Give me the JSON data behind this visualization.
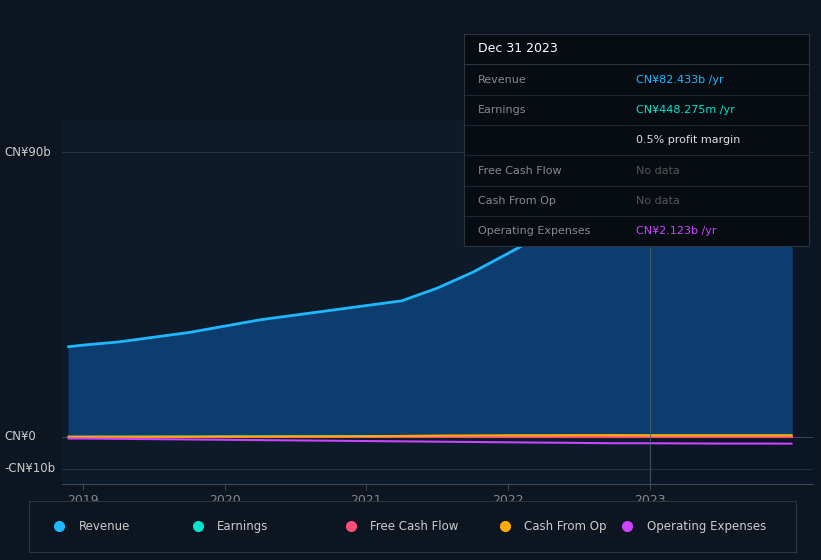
{
  "background_color": "#0d1520",
  "plot_bg_color": "#0d1a2a",
  "highlight_bg_color": "#0a1525",
  "years": [
    2018.9,
    2019.0,
    2019.25,
    2019.5,
    2019.75,
    2020.0,
    2020.25,
    2020.5,
    2020.75,
    2021.0,
    2021.25,
    2021.5,
    2021.75,
    2022.0,
    2022.25,
    2022.5,
    2022.75,
    2023.0,
    2023.25,
    2023.5,
    2023.75,
    2024.0
  ],
  "revenue": [
    28.5,
    29.0,
    30.0,
    31.5,
    33.0,
    35.0,
    37.0,
    38.5,
    40.0,
    41.5,
    43.0,
    47.0,
    52.0,
    58.0,
    64.0,
    68.0,
    71.5,
    73.5,
    76.0,
    78.5,
    80.5,
    82.433
  ],
  "earnings": [
    0.05,
    0.05,
    0.08,
    0.1,
    0.12,
    0.15,
    0.18,
    0.2,
    0.22,
    0.25,
    0.28,
    0.3,
    0.32,
    0.35,
    0.38,
    0.4,
    0.42,
    0.44,
    0.44,
    0.45,
    0.45,
    0.448
  ],
  "free_cash_flow": [
    -0.1,
    -0.1,
    -0.1,
    -0.1,
    -0.1,
    -0.1,
    -0.1,
    -0.1,
    -0.1,
    -0.1,
    -0.1,
    -0.1,
    -0.1,
    -0.1,
    -0.1,
    -0.1,
    -0.1,
    -0.1,
    -0.1,
    -0.1,
    -0.1,
    -0.1
  ],
  "cash_from_op": [
    0.05,
    0.05,
    0.05,
    0.05,
    0.05,
    0.1,
    0.1,
    0.15,
    0.15,
    0.2,
    0.3,
    0.4,
    0.45,
    0.5,
    0.5,
    0.55,
    0.55,
    0.5,
    0.5,
    0.5,
    0.5,
    0.5
  ],
  "op_expenses": [
    -0.5,
    -0.5,
    -0.6,
    -0.7,
    -0.8,
    -0.9,
    -1.0,
    -1.1,
    -1.2,
    -1.3,
    -1.4,
    -1.5,
    -1.6,
    -1.7,
    -1.8,
    -1.9,
    -2.0,
    -2.0,
    -2.05,
    -2.1,
    -2.1,
    -2.123
  ],
  "revenue_color": "#1eb8ff",
  "revenue_fill_color": "#0d3d6e",
  "earnings_color": "#00e5cc",
  "free_cash_flow_color": "#ff4d7a",
  "cash_from_op_color": "#ffaa00",
  "op_expenses_color": "#cc44ff",
  "highlight_x": 2023.0,
  "ylim": [
    -15,
    100
  ],
  "xlim": [
    2018.85,
    2024.15
  ],
  "xtick_years": [
    2019,
    2020,
    2021,
    2022,
    2023
  ],
  "ylabel_90": "CN¥90b",
  "ylabel_0": "CN¥0",
  "ylabel_neg10": "-CN¥10b",
  "tooltip_title": "Dec 31 2023",
  "tooltip_revenue_label": "Revenue",
  "tooltip_revenue_value": "CN¥82.433b /yr",
  "tooltip_earnings_label": "Earnings",
  "tooltip_earnings_value": "CN¥448.275m /yr",
  "tooltip_margin": "0.5% profit margin",
  "tooltip_fcf_label": "Free Cash Flow",
  "tooltip_fcf_value": "No data",
  "tooltip_cfop_label": "Cash From Op",
  "tooltip_cfop_value": "No data",
  "tooltip_opex_label": "Operating Expenses",
  "tooltip_opex_value": "CN¥2.123b /yr",
  "legend_items": [
    "Revenue",
    "Earnings",
    "Free Cash Flow",
    "Cash From Op",
    "Operating Expenses"
  ],
  "legend_colors": [
    "#1eb8ff",
    "#00e5cc",
    "#ff4d7a",
    "#ffaa00",
    "#cc44ff"
  ],
  "grid_color": "#2a3a4a",
  "tick_color": "#888888",
  "text_color": "#cccccc"
}
